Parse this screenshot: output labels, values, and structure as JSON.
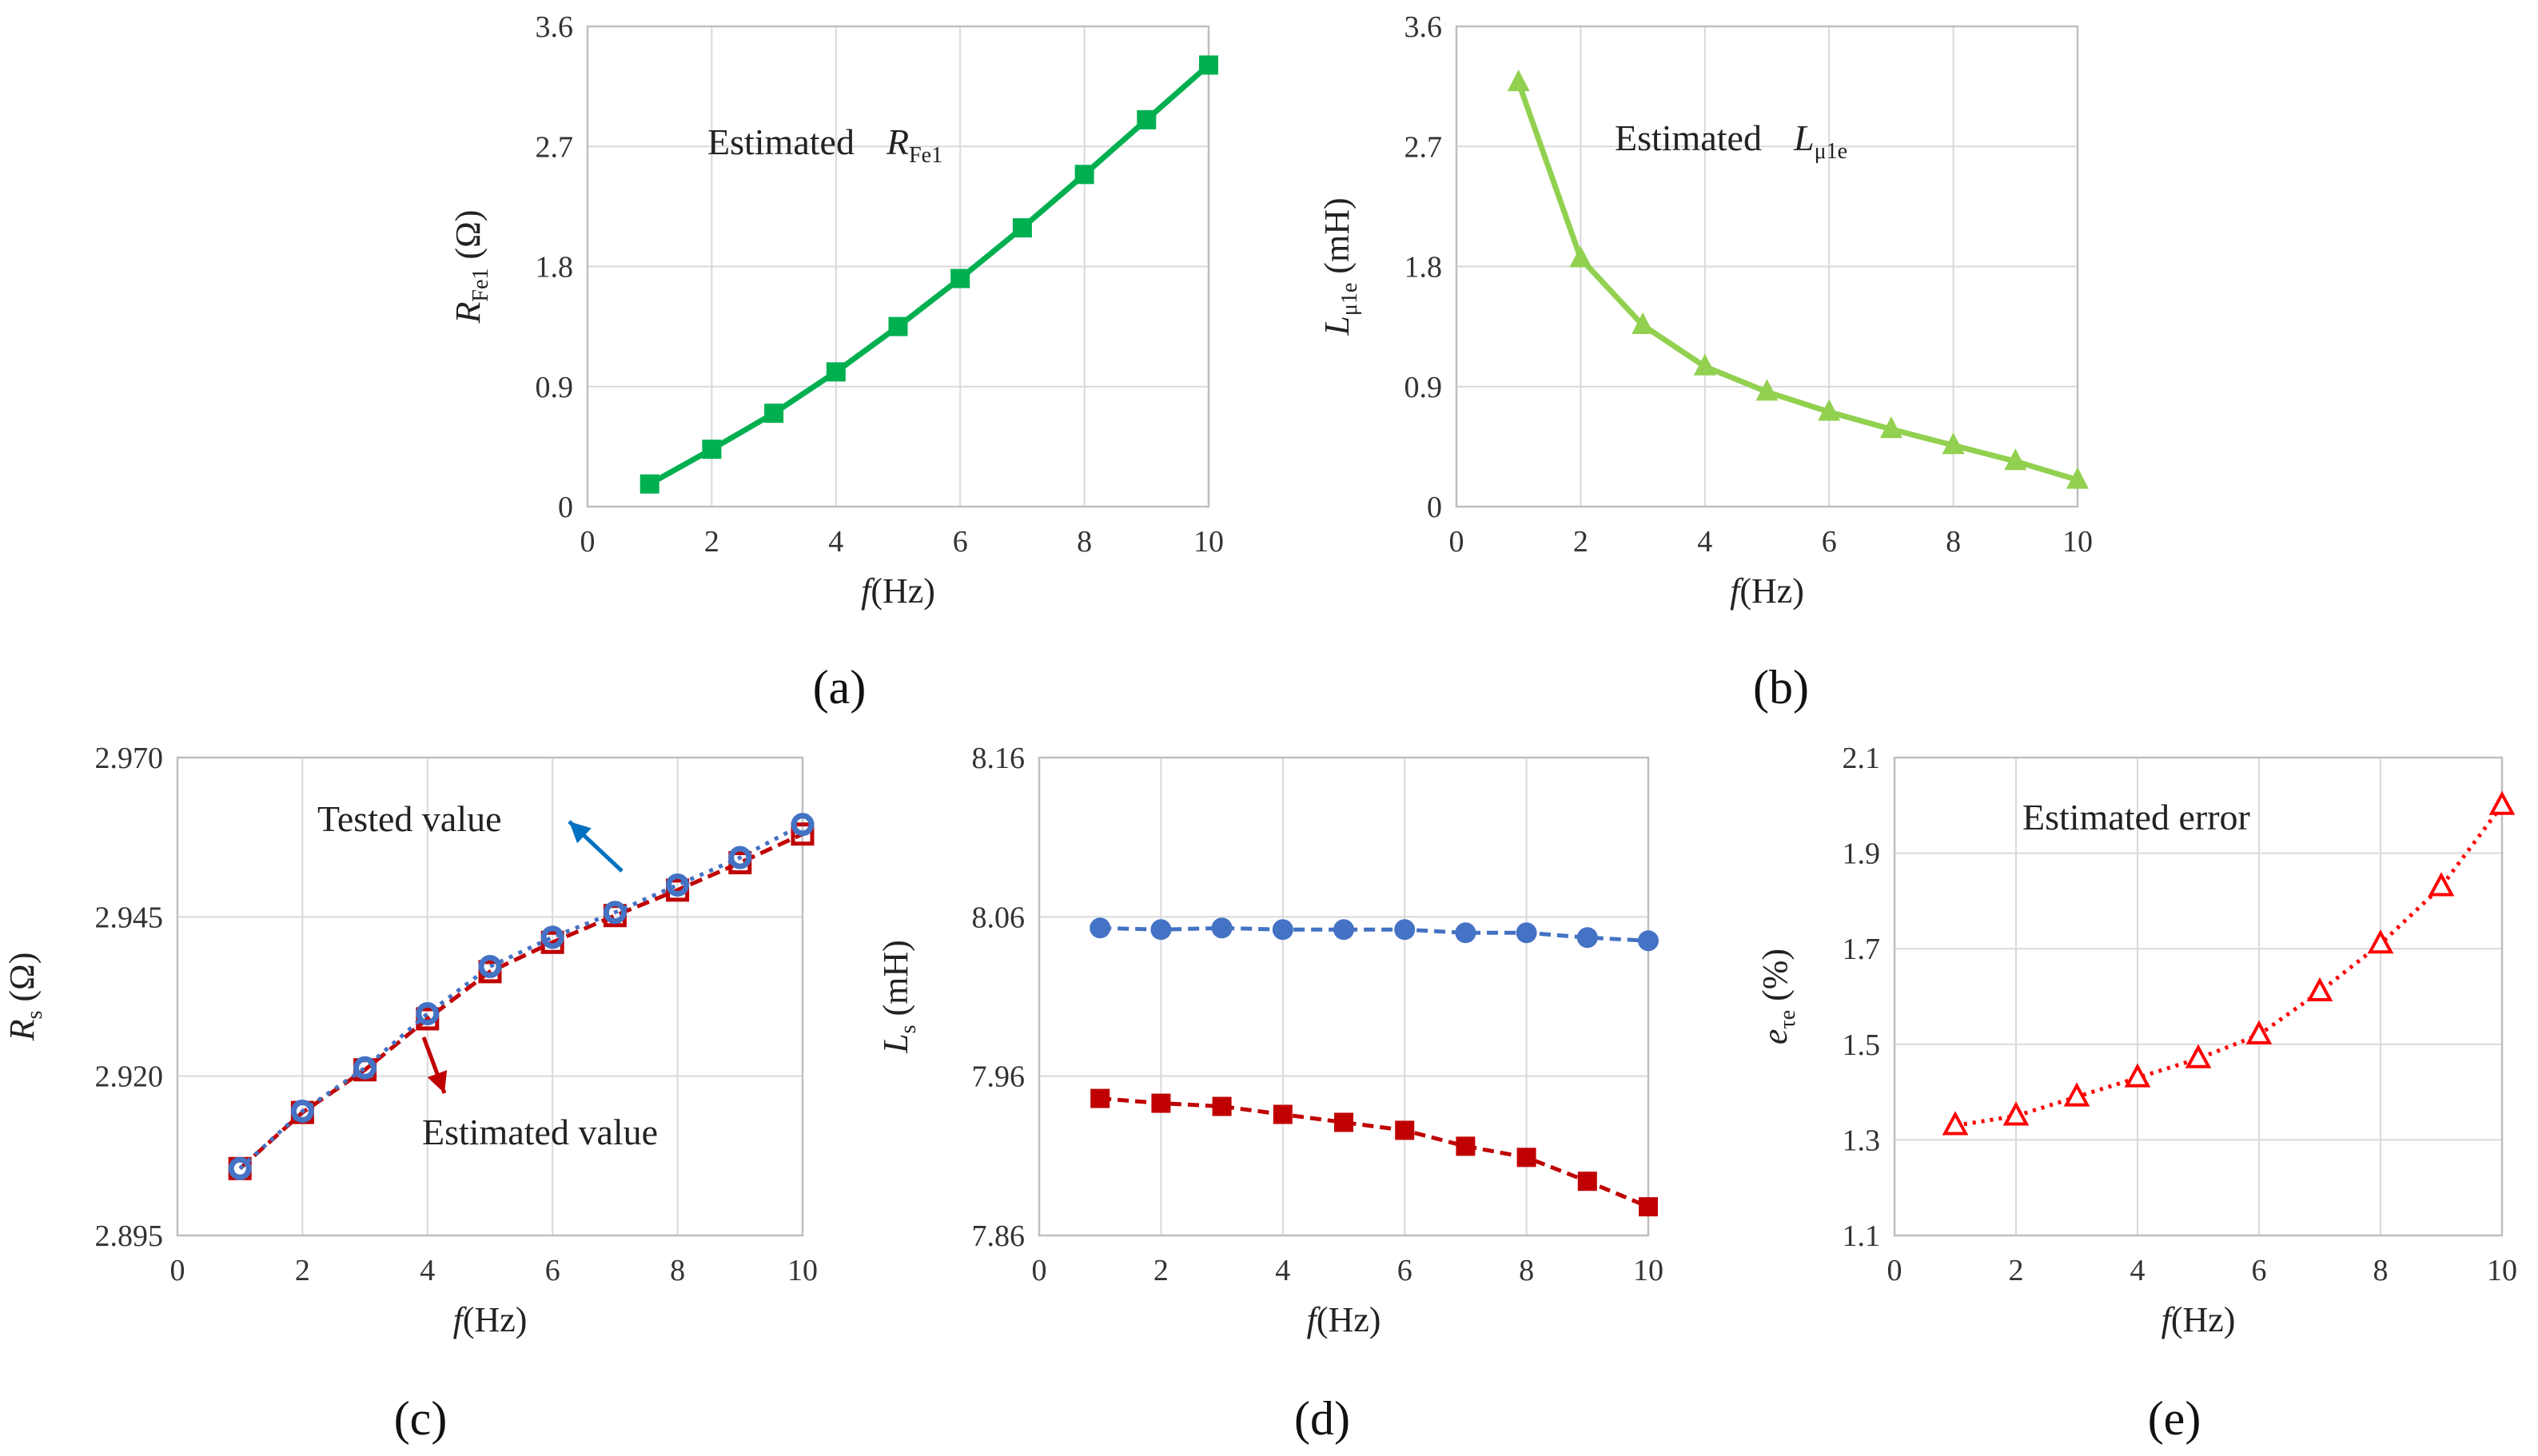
{
  "panel_labels": [
    "(a)",
    "(b)",
    "(c)",
    "(d)",
    "(e)"
  ],
  "chart_data": [
    {
      "id": "a",
      "type": "line",
      "panel_label": "(a)",
      "xlabel": "f(Hz)",
      "ylabel": "RFe1 (Ω)",
      "ylabel_parts": {
        "main": "R",
        "sub": "Fe1",
        "unit": " (Ω)"
      },
      "annotation": {
        "text": "Estimated",
        "sym": "R",
        "sub": "Fe1"
      },
      "xlim": [
        0,
        10
      ],
      "ylim": [
        0,
        3.6
      ],
      "xticks": [
        0,
        2,
        4,
        6,
        8,
        10
      ],
      "yticks": [
        0,
        0.9,
        1.8,
        2.7,
        3.6
      ],
      "ytick_labels": [
        "0",
        "0.9",
        "1.8",
        "2.7",
        "3.6"
      ],
      "grid": true,
      "series": [
        {
          "color": "#00b050",
          "marker": "square",
          "x": [
            1,
            2,
            3,
            4,
            5,
            6,
            7,
            8,
            9,
            10
          ],
          "y": [
            0.17,
            0.43,
            0.7,
            1.01,
            1.35,
            1.71,
            2.09,
            2.49,
            2.9,
            3.31
          ]
        }
      ]
    },
    {
      "id": "b",
      "type": "line",
      "panel_label": "(b)",
      "xlabel": "f(Hz)",
      "ylabel": "Lμ1e (mH)",
      "ylabel_parts": {
        "main": "L",
        "sub": "μ1e",
        "unit": " (mH)"
      },
      "annotation": {
        "text": "Estimated",
        "sym": "L",
        "sub": "μ1e"
      },
      "xlim": [
        0,
        10
      ],
      "ylim": [
        0,
        3.6
      ],
      "xticks": [
        0,
        2,
        4,
        6,
        8,
        10
      ],
      "yticks": [
        0,
        0.9,
        1.8,
        2.7,
        3.6
      ],
      "ytick_labels": [
        "0",
        "0.9",
        "1.8",
        "2.7",
        "3.6"
      ],
      "grid": true,
      "series": [
        {
          "color": "#92d050",
          "marker": "triangle",
          "x": [
            1,
            2,
            3,
            4,
            5,
            6,
            7,
            8,
            9,
            10
          ],
          "y": [
            3.18,
            1.86,
            1.36,
            1.05,
            0.86,
            0.71,
            0.58,
            0.46,
            0.34,
            0.2
          ]
        }
      ]
    },
    {
      "id": "c",
      "type": "line",
      "panel_label": "(c)",
      "xlabel": "f(Hz)",
      "ylabel": "Rs (Ω)",
      "ylabel_parts": {
        "main": "R",
        "sub": "s",
        "unit": " (Ω)"
      },
      "annotations": [
        {
          "text": "Tested value",
          "arrow_color": "#0070c0"
        },
        {
          "text": "Estimated value",
          "arrow_color": "#c00000"
        }
      ],
      "xlim": [
        0,
        10
      ],
      "ylim": [
        2.895,
        2.97
      ],
      "xticks": [
        0,
        2,
        4,
        6,
        8,
        10
      ],
      "yticks": [
        2.895,
        2.92,
        2.945,
        2.97
      ],
      "ytick_labels": [
        "2.895",
        "2.920",
        "2.945",
        "2.970"
      ],
      "grid": true,
      "series": [
        {
          "color": "#c00000",
          "marker": "square-open",
          "dash": "16,8",
          "x": [
            1,
            2,
            3,
            4,
            5,
            6,
            7,
            8,
            9,
            10
          ],
          "y": [
            2.9055,
            2.9143,
            2.921,
            2.929,
            2.9364,
            2.941,
            2.9452,
            2.9492,
            2.9535,
            2.958
          ]
        },
        {
          "color": "#4472c4",
          "marker": "circle-open",
          "dash": "5,8",
          "x": [
            1,
            2,
            3,
            4,
            5,
            6,
            7,
            8,
            9,
            10
          ],
          "y": [
            2.9055,
            2.9145,
            2.9213,
            2.9298,
            2.9372,
            2.9418,
            2.9457,
            2.95,
            2.9543,
            2.9595
          ]
        }
      ]
    },
    {
      "id": "d",
      "type": "line",
      "panel_label": "(d)",
      "xlabel": "f(Hz)",
      "ylabel": "Ls (mH)",
      "ylabel_parts": {
        "main": "L",
        "sub": "s",
        "unit": " (mH)"
      },
      "xlim": [
        0,
        10
      ],
      "ylim": [
        7.86,
        8.16
      ],
      "xticks": [
        0,
        2,
        4,
        6,
        8,
        10
      ],
      "yticks": [
        7.86,
        7.96,
        8.06,
        8.16
      ],
      "ytick_labels": [
        "7.86",
        "7.96",
        "8.06",
        "8.16"
      ],
      "grid": true,
      "series": [
        {
          "color": "#4472c4",
          "marker": "circle",
          "dash": "14,8",
          "x": [
            1,
            2,
            3,
            4,
            5,
            6,
            7,
            8,
            9,
            10
          ],
          "y": [
            8.053,
            8.052,
            8.053,
            8.052,
            8.052,
            8.052,
            8.05,
            8.05,
            8.047,
            8.045
          ]
        },
        {
          "color": "#c00000",
          "marker": "square",
          "dash": "14,8",
          "x": [
            1,
            2,
            3,
            4,
            5,
            6,
            7,
            8,
            9,
            10
          ],
          "y": [
            7.946,
            7.943,
            7.941,
            7.936,
            7.931,
            7.926,
            7.916,
            7.909,
            7.894,
            7.878
          ]
        }
      ]
    },
    {
      "id": "e",
      "type": "line",
      "panel_label": "(e)",
      "xlabel": "f(Hz)",
      "ylabel": "eτe (%)",
      "ylabel_parts": {
        "main": "e",
        "sub": "τe",
        "unit": " (%)"
      },
      "annotation": {
        "text": "Estimated error"
      },
      "xlim": [
        0,
        10
      ],
      "ylim": [
        1.1,
        2.1
      ],
      "xticks": [
        0,
        2,
        4,
        6,
        8,
        10
      ],
      "yticks": [
        1.1,
        1.3,
        1.5,
        1.7,
        1.9,
        2.1
      ],
      "ytick_labels": [
        "1.1",
        "1.3",
        "1.5",
        "1.7",
        "1.9",
        "2.1"
      ],
      "grid": true,
      "series": [
        {
          "color": "#ff0000",
          "marker": "triangle-open",
          "dash": "4,7",
          "x": [
            1,
            2,
            3,
            4,
            5,
            6,
            7,
            8,
            9,
            10
          ],
          "y": [
            1.33,
            1.35,
            1.39,
            1.43,
            1.47,
            1.52,
            1.61,
            1.71,
            1.83,
            2.0
          ]
        }
      ]
    }
  ]
}
